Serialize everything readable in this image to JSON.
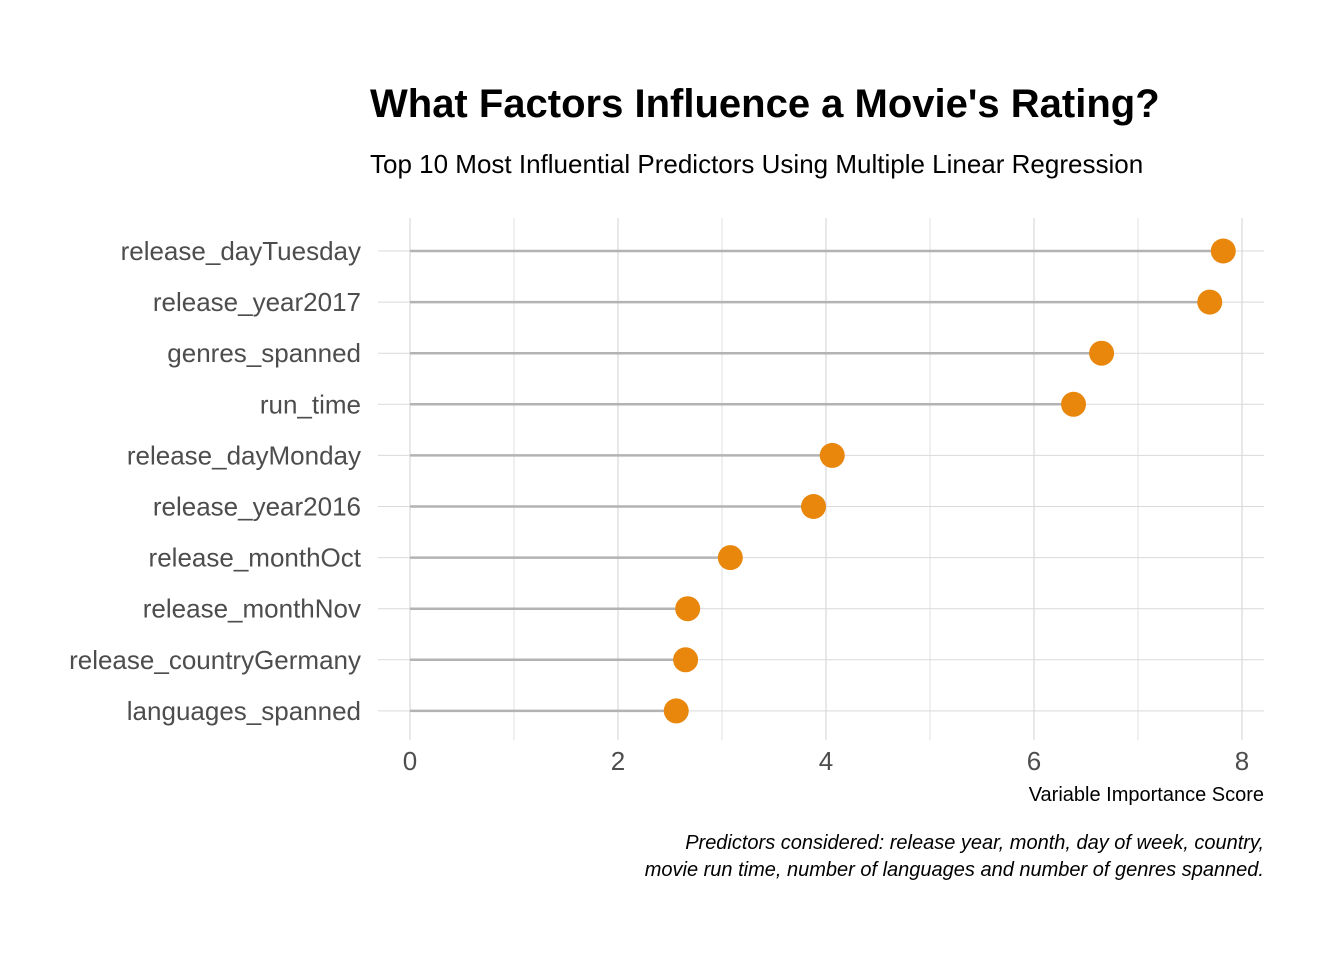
{
  "colors": {
    "point": "#E8870C",
    "segment": "#B3B3B3",
    "grid": "#D9D9D9",
    "tick_text": "#4D4D4D",
    "text": "#000000",
    "background": "#FFFFFF"
  },
  "chart_data": {
    "type": "lollipop",
    "orientation": "horizontal",
    "title": "What Factors Influence a Movie's Rating?",
    "subtitle": "Top 10 Most Influential Predictors Using Multiple Linear Regression",
    "xlabel": "Variable Importance Score",
    "ylabel": "",
    "caption_lines": [
      "Predictors considered: release year, month, day of week, country,",
      "movie run time, number of languages and number of genres spanned."
    ],
    "xlim": [
      0,
      8.2
    ],
    "x_ticks": [
      0,
      2,
      4,
      6,
      8
    ],
    "x_tick_labels": [
      "0",
      "2",
      "4",
      "6",
      "8"
    ],
    "grid": true,
    "legend": "none",
    "categories": [
      "release_dayTuesday",
      "release_year2017",
      "genres_spanned",
      "run_time",
      "release_dayMonday",
      "release_year2016",
      "release_monthOct",
      "release_monthNov",
      "release_countryGermany",
      "languages_spanned"
    ],
    "values": [
      7.82,
      7.69,
      6.65,
      6.38,
      4.06,
      3.88,
      3.08,
      2.67,
      2.65,
      2.56
    ]
  }
}
